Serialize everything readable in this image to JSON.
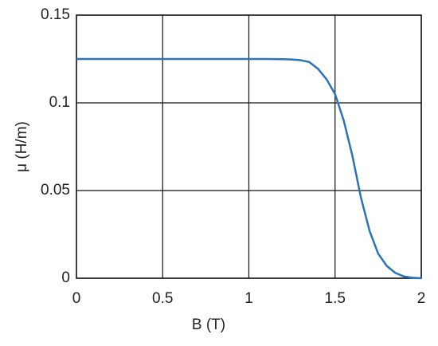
{
  "chart_data": {
    "type": "line",
    "xlabel": "B (T)",
    "ylabel": "μ (H/m)",
    "series": [
      {
        "name": "μ",
        "color": "#2b73b9",
        "x": [
          0,
          0.2,
          0.4,
          0.6,
          0.8,
          1.0,
          1.1,
          1.2,
          1.25,
          1.3,
          1.35,
          1.4,
          1.45,
          1.5,
          1.55,
          1.6,
          1.65,
          1.7,
          1.75,
          1.8,
          1.85,
          1.9,
          1.95,
          2.0
        ],
        "values": [
          0.125,
          0.125,
          0.125,
          0.125,
          0.125,
          0.125,
          0.125,
          0.1249,
          0.1247,
          0.1243,
          0.1233,
          0.1195,
          0.1135,
          0.105,
          0.09,
          0.07,
          0.046,
          0.027,
          0.014,
          0.007,
          0.003,
          0.001,
          0.0003,
          0
        ]
      }
    ],
    "xlim": [
      0,
      2
    ],
    "xticks": [
      0,
      0.5,
      1,
      1.5,
      2
    ],
    "ylim": [
      0,
      0.15
    ],
    "yticks": [
      0,
      0.05,
      0.1,
      0.15
    ],
    "grid": true
  }
}
